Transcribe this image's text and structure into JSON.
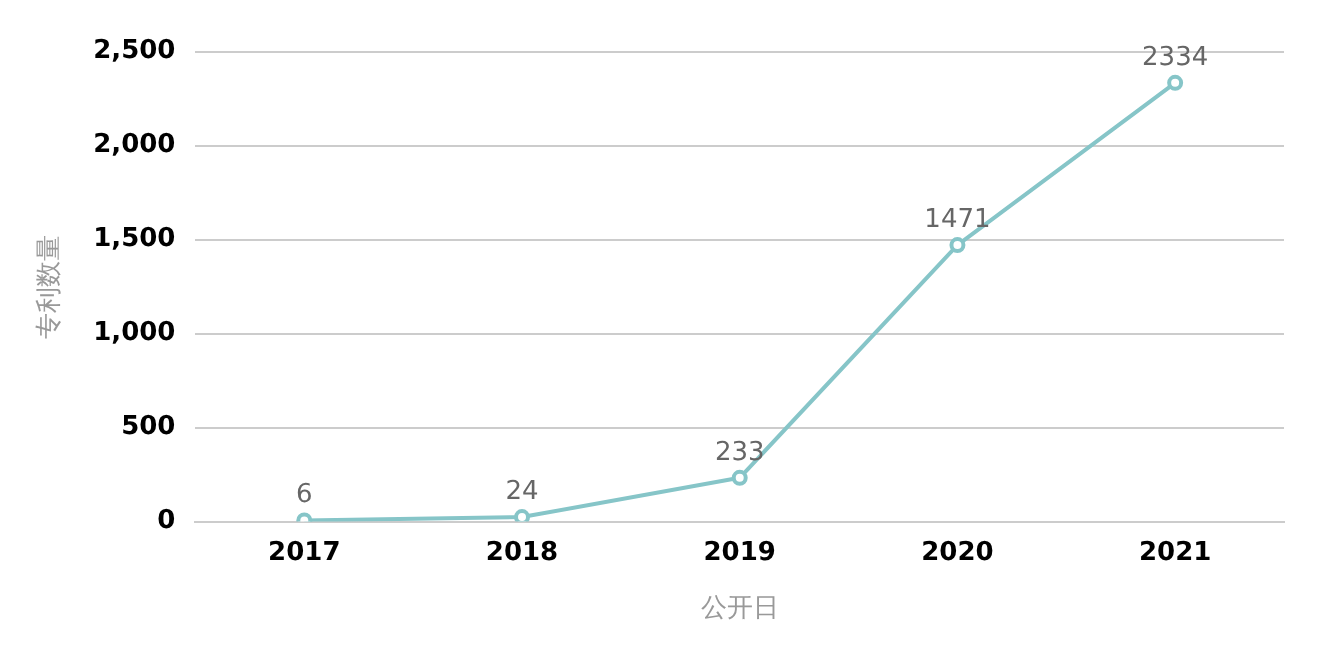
{
  "chart_data": {
    "type": "line",
    "xlabel": "公开日",
    "ylabel": "专利数量",
    "categories": [
      "2017",
      "2018",
      "2019",
      "2020",
      "2021"
    ],
    "series": [
      {
        "color": "#86c5c8",
        "values": [
          6,
          24,
          233,
          1471,
          2334
        ]
      }
    ],
    "ylim": [
      0,
      2500
    ],
    "yticks": [
      0,
      500,
      {
        "value": 1000,
        "label": "1,000"
      },
      {
        "value": 1500,
        "label": "1,500"
      },
      {
        "value": 2000,
        "label": "2,000"
      },
      {
        "value": 2500,
        "label": "2,500"
      }
    ],
    "grid": "y",
    "legend": false,
    "marker": "circle",
    "line_style": "solid",
    "data_labels": true
  }
}
